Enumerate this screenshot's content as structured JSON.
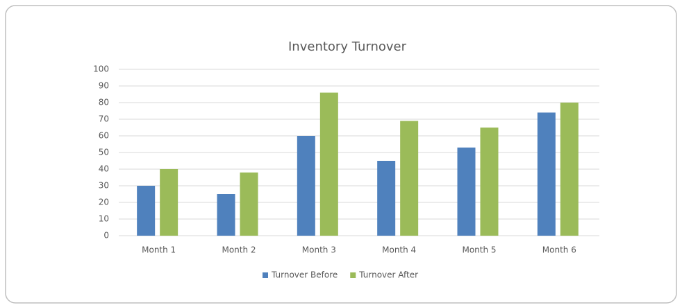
{
  "chart_data": {
    "type": "bar",
    "title": "Inventory Turnover",
    "categories": [
      "Month 1",
      "Month 2",
      "Month 3",
      "Month 4",
      "Month 5",
      "Month 6"
    ],
    "series": [
      {
        "name": "Turnover Before",
        "color": "#4f81bd",
        "values": [
          30,
          25,
          60,
          45,
          53,
          74
        ]
      },
      {
        "name": "Turnover After",
        "color": "#9bbb59",
        "values": [
          40,
          38,
          86,
          69,
          65,
          80
        ]
      }
    ],
    "ylim": [
      0,
      100
    ],
    "yticks": [
      0,
      10,
      20,
      30,
      40,
      50,
      60,
      70,
      80,
      90,
      100
    ],
    "grid": true,
    "legend": "bottom"
  }
}
